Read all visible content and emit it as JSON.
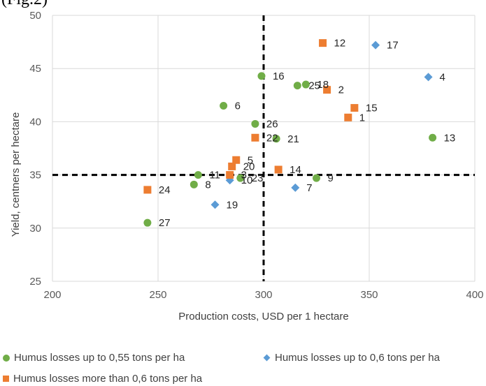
{
  "top_fragment": "(Fig.2)",
  "chart_data": {
    "type": "scatter",
    "title": "",
    "xlabel": "Production costs, USD per 1 hectare",
    "ylabel": "Yield, centners per hectare",
    "xlim": [
      200,
      400
    ],
    "ylim": [
      25,
      50
    ],
    "xticks": [
      200,
      250,
      300,
      350,
      400
    ],
    "yticks": [
      25,
      30,
      35,
      40,
      45,
      50
    ],
    "grid": true,
    "reference_lines": {
      "x": 300,
      "y": 35
    },
    "legend_position": "bottom",
    "series": [
      {
        "name": "Humus losses up to 0,55 tons per ha",
        "marker": "circle",
        "color": "#70ad47",
        "points": [
          {
            "label": "6",
            "x": 281,
            "y": 41.5
          },
          {
            "label": "16",
            "x": 299,
            "y": 44.3
          },
          {
            "label": "18",
            "x": 320,
            "y": 43.5
          },
          {
            "label": "25",
            "x": 316,
            "y": 43.4
          },
          {
            "label": "26",
            "x": 296,
            "y": 39.8
          },
          {
            "label": "21",
            "x": 306,
            "y": 38.4
          },
          {
            "label": "13",
            "x": 380,
            "y": 38.5
          },
          {
            "label": "11",
            "x": 269,
            "y": 35.0
          },
          {
            "label": "8",
            "x": 267,
            "y": 34.1
          },
          {
            "label": "23",
            "x": 289,
            "y": 34.7
          },
          {
            "label": "9",
            "x": 325,
            "y": 34.7
          },
          {
            "label": "27",
            "x": 245,
            "y": 30.5
          }
        ]
      },
      {
        "name": "Humus losses up to 0,6 tons per ha",
        "marker": "diamond",
        "color": "#5b9bd5",
        "points": [
          {
            "label": "17",
            "x": 353,
            "y": 47.2
          },
          {
            "label": "4",
            "x": 378,
            "y": 44.2
          },
          {
            "label": "10",
            "x": 284,
            "y": 34.5
          },
          {
            "label": "7",
            "x": 315,
            "y": 33.8
          },
          {
            "label": "19",
            "x": 277,
            "y": 32.2
          }
        ]
      },
      {
        "name": "Humus losses more than 0,6 tons per ha",
        "marker": "square",
        "color": "#ed7d31",
        "points": [
          {
            "label": "12",
            "x": 328,
            "y": 47.4
          },
          {
            "label": "2",
            "x": 330,
            "y": 43.0
          },
          {
            "label": "15",
            "x": 343,
            "y": 41.3
          },
          {
            "label": "1",
            "x": 340,
            "y": 40.4
          },
          {
            "label": "22",
            "x": 296,
            "y": 38.5
          },
          {
            "label": "5",
            "x": 287,
            "y": 36.4
          },
          {
            "label": "20",
            "x": 285,
            "y": 35.8
          },
          {
            "label": "3",
            "x": 284,
            "y": 35.0
          },
          {
            "label": "14",
            "x": 307,
            "y": 35.5
          },
          {
            "label": "24",
            "x": 245,
            "y": 33.6
          }
        ]
      }
    ]
  }
}
